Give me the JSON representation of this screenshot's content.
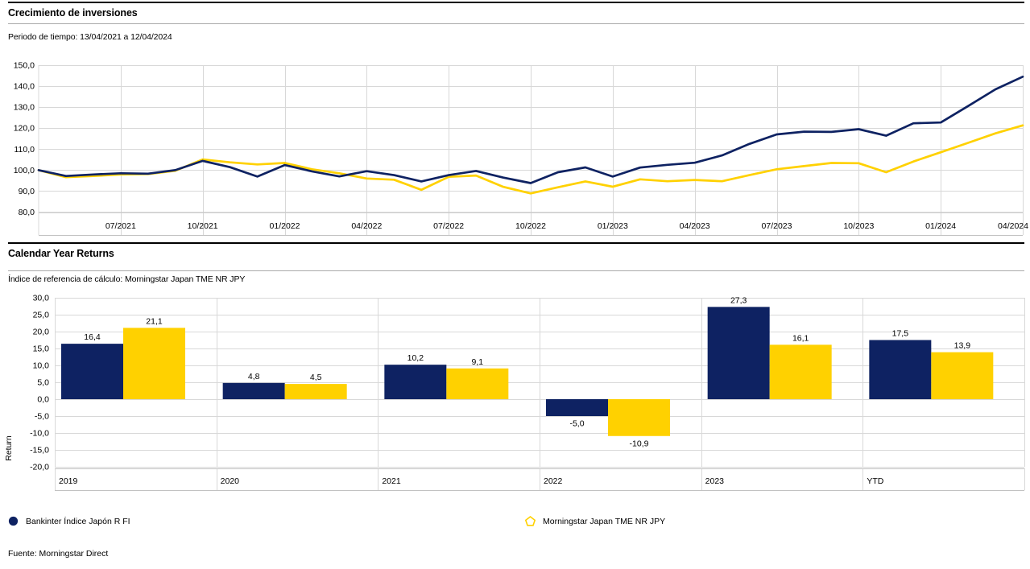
{
  "report": {
    "growth_section": {
      "title": "Crecimiento de inversiones",
      "subtitle": "Periodo de tiempo: 13/04/2021 a 12/04/2024"
    },
    "calendar_section": {
      "title": "Calendar Year Returns",
      "subtitle": "Índice de referencia de cálculo: Morningstar Japan TME NR JPY"
    },
    "legend": [
      {
        "label": "Bankinter Índice Japón R FI",
        "marker": "filled-circle",
        "color": "#0e2262"
      },
      {
        "label": "Morningstar Japan TME NR JPY",
        "marker": "hollow-pentagon",
        "color": "#ffd100"
      }
    ],
    "source": "Fuente: Morningstar Direct"
  },
  "colors": {
    "fund_navy": "#0e2262",
    "benchmark_yellow": "#ffd100",
    "gridline": "#d8d8d8",
    "axis_line": "#c2c2c2",
    "heavy_rule": "#000000",
    "light_rule": "#a9a9a9"
  },
  "chart_data": [
    {
      "type": "line",
      "title": "Crecimiento de inversiones",
      "subtitle": "Periodo de tiempo: 13/04/2021 a 12/04/2024",
      "x_start": "04/2021",
      "x_end": "04/2024",
      "x_interval": "monthly",
      "ylim": [
        80,
        150
      ],
      "ytick_step": 10,
      "ytick_labels": [
        "150,0",
        "140,0",
        "130,0",
        "120,0",
        "110,0",
        "100,0",
        "90,0",
        "80,0"
      ],
      "xtick_labels": [
        "07/2021",
        "10/2021",
        "01/2022",
        "04/2022",
        "07/2022",
        "10/2022",
        "01/2023",
        "04/2023",
        "07/2023",
        "10/2023",
        "01/2024",
        "04/2024"
      ],
      "grid": true,
      "legend_position": "bottom",
      "series": [
        {
          "name": "Bankinter Índice Japón R FI",
          "color": "#0e2262",
          "values": [
            100.0,
            97.2,
            97.9,
            98.5,
            98.3,
            100.0,
            104.4,
            101.4,
            96.9,
            102.4,
            99.4,
            97.0,
            99.5,
            97.6,
            94.6,
            97.6,
            99.6,
            96.4,
            93.8,
            99.0,
            101.3,
            96.9,
            101.2,
            102.5,
            103.5,
            107.0,
            112.5,
            117.0,
            118.3,
            118.2,
            119.5,
            116.4,
            122.3,
            122.7,
            130.5,
            138.5,
            144.5
          ]
        },
        {
          "name": "Morningstar Japan TME NR JPY",
          "color": "#ffd100",
          "values": [
            100.0,
            96.6,
            97.2,
            97.9,
            98.1,
            99.7,
            105.1,
            103.7,
            102.7,
            103.4,
            100.4,
            98.5,
            96.0,
            95.4,
            90.6,
            96.8,
            97.4,
            92.0,
            88.9,
            91.8,
            94.6,
            92.1,
            95.6,
            94.7,
            95.3,
            94.7,
            97.6,
            100.4,
            101.9,
            103.4,
            103.3,
            99.0,
            104.1,
            108.5,
            113.0,
            117.5,
            121.3
          ]
        }
      ]
    },
    {
      "type": "bar",
      "title": "Calendar Year Returns",
      "subtitle": "Índice de referencia de cálculo: Morningstar Japan TME NR JPY",
      "ylabel": "Return",
      "ylim": [
        -20,
        30
      ],
      "ytick_step": 5,
      "ytick_labels": [
        "30,0",
        "25,0",
        "20,0",
        "15,0",
        "10,0",
        "5,0",
        "0,0",
        "-5,0",
        "-10,0",
        "-15,0",
        "-20,0"
      ],
      "categories": [
        "2019",
        "2020",
        "2021",
        "2022",
        "2023",
        "YTD"
      ],
      "grid": true,
      "series": [
        {
          "name": "Bankinter Índice Japón R FI",
          "color": "#0e2262",
          "values": [
            16.4,
            4.8,
            10.2,
            -5.0,
            27.3,
            17.5
          ],
          "value_labels": [
            "16,4",
            "4,8",
            "10,2",
            "-5,0",
            "27,3",
            "17,5"
          ]
        },
        {
          "name": "Morningstar Japan TME NR JPY",
          "color": "#ffd100",
          "values": [
            21.1,
            4.5,
            9.1,
            -10.9,
            16.1,
            13.9
          ],
          "value_labels": [
            "21,1",
            "4,5",
            "9,1",
            "-10,9",
            "16,1",
            "13,9"
          ]
        }
      ]
    }
  ]
}
